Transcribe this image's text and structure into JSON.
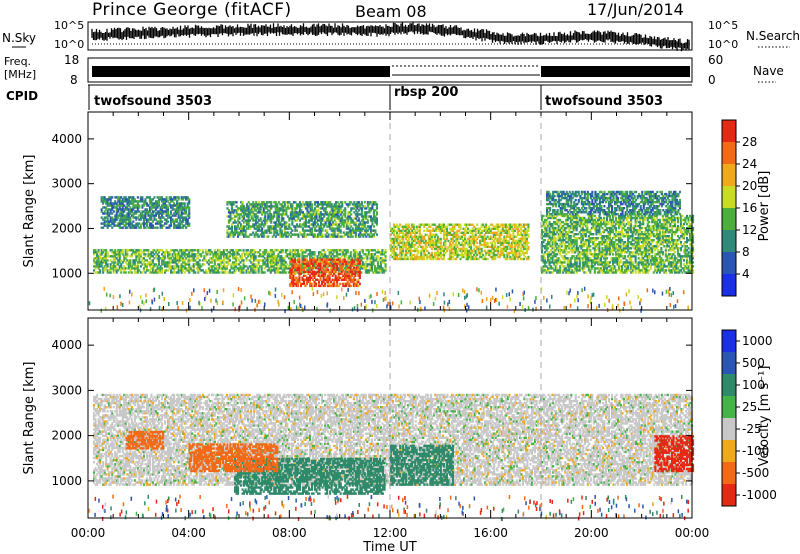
{
  "header": {
    "station": "Prince George (fitACF)",
    "beam": "Beam 08",
    "date": "17/Jun/2014"
  },
  "top_panels": {
    "nsky_label": "N.Sky",
    "nsky_ticks": [
      "10^5",
      "10^0"
    ],
    "nsearch_label": "N.Search",
    "freq_label_1": "Freq.",
    "freq_label_2": "[MHz]",
    "freq_ticks_left": [
      "18",
      "8"
    ],
    "nave_label": "Nave",
    "nave_ticks_right": [
      "60",
      "0"
    ],
    "cpid_label": "CPID",
    "cpid_segments": [
      {
        "label": "twofsound 3503",
        "start_hour": 0
      },
      {
        "label": "rbsp 200",
        "start_hour": 12
      },
      {
        "label": "twofsound 3503",
        "start_hour": 18
      }
    ]
  },
  "chart_data": [
    {
      "type": "heatmap",
      "title": "",
      "xlabel": "Time UT",
      "ylabel": "Slant Range [km]",
      "x_ticks": [
        "00:00",
        "04:00",
        "08:00",
        "12:00",
        "16:00",
        "20:00",
        "00:00"
      ],
      "y_ticks": [
        1000,
        2000,
        3000,
        4000
      ],
      "xlim": [
        0,
        24
      ],
      "ylim": [
        180,
        4600
      ],
      "colorbar": {
        "label": "Power [dB]",
        "ticks": [
          4,
          8,
          12,
          16,
          20,
          24,
          28
        ],
        "colors": [
          "#1a2fe6",
          "#2a55b4",
          "#2f8a7a",
          "#4cae3e",
          "#c8dc26",
          "#f0a81c",
          "#f26a18",
          "#e42a14"
        ]
      },
      "regions": [
        {
          "t0": 0.2,
          "t1": 11.8,
          "r0": 1000,
          "r1": 1500,
          "value": 14
        },
        {
          "t0": 0.5,
          "t1": 4.0,
          "r0": 2000,
          "r1": 2700,
          "value": 10
        },
        {
          "t0": 5.5,
          "t1": 11.5,
          "r0": 1800,
          "r1": 2600,
          "value": 12
        },
        {
          "t0": 8.0,
          "t1": 10.8,
          "r0": 700,
          "r1": 1300,
          "value": 28
        },
        {
          "t0": 12.0,
          "t1": 17.5,
          "r0": 1300,
          "r1": 2100,
          "value": 18
        },
        {
          "t0": 18.0,
          "t1": 24.0,
          "r0": 1000,
          "r1": 2300,
          "value": 14
        },
        {
          "t0": 18.2,
          "t1": 23.5,
          "r0": 2300,
          "r1": 2800,
          "value": 10
        }
      ]
    },
    {
      "type": "heatmap",
      "title": "",
      "xlabel": "Time UT",
      "ylabel": "Slant Range [km]",
      "x_ticks": [
        "00:00",
        "04:00",
        "08:00",
        "12:00",
        "16:00",
        "20:00",
        "00:00"
      ],
      "y_ticks": [
        1000,
        2000,
        3000,
        4000
      ],
      "xlim": [
        0,
        24
      ],
      "ylim": [
        180,
        4600
      ],
      "colorbar": {
        "label": "Velocity [m s⁻¹]",
        "ticks": [
          1000,
          500,
          100,
          25,
          -25,
          -100,
          -500,
          -1000
        ],
        "colors": [
          "#1a2fe6",
          "#2a55b4",
          "#2f8a6a",
          "#44b448",
          "#c8c8c8",
          "#f0a81c",
          "#f26a18",
          "#e42a14"
        ]
      },
      "regions": [
        {
          "t0": 0.2,
          "t1": 24.0,
          "r0": 900,
          "r1": 2900,
          "value": 0
        },
        {
          "t0": 5.8,
          "t1": 11.8,
          "r0": 700,
          "r1": 1500,
          "value": 300
        },
        {
          "t0": 12.0,
          "t1": 14.5,
          "r0": 900,
          "r1": 1800,
          "value": 300
        },
        {
          "t0": 4.0,
          "t1": 7.5,
          "r0": 1200,
          "r1": 1800,
          "value": -200
        },
        {
          "t0": 1.5,
          "t1": 3.0,
          "r0": 1700,
          "r1": 2100,
          "value": -200
        },
        {
          "t0": 22.5,
          "t1": 24.0,
          "r0": 1200,
          "r1": 2000,
          "value": -1000
        }
      ]
    }
  ]
}
